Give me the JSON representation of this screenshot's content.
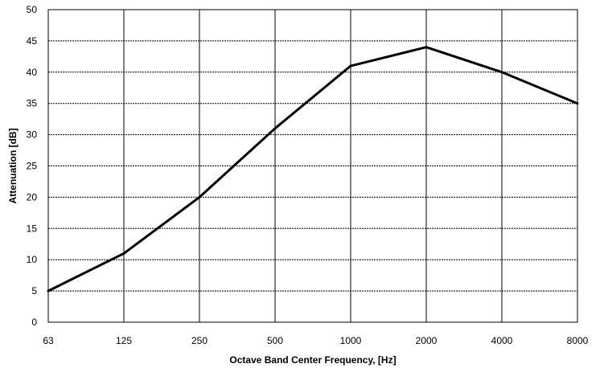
{
  "chart_data": {
    "type": "line",
    "categories": [
      "63",
      "125",
      "250",
      "500",
      "1000",
      "2000",
      "4000",
      "8000"
    ],
    "series": [
      {
        "values": [
          5,
          11,
          20,
          31,
          41,
          44,
          40,
          35
        ]
      }
    ],
    "xlabel": "Octave Band Center Frequency, [Hz]",
    "ylabel": "Attenuation [dB]",
    "ylim": [
      0,
      50
    ],
    "yticks": [
      0,
      5,
      10,
      15,
      20,
      25,
      30,
      35,
      40,
      45,
      50
    ],
    "grid": true,
    "line_color": "#000000",
    "grid_color": "#000000"
  }
}
